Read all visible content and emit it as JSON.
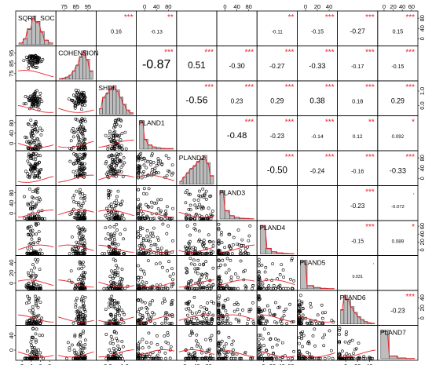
{
  "chart_data": {
    "type": "scatter-matrix",
    "variables": [
      "SQRT_SOC",
      "COHENSION",
      "SHDI",
      "PLAND1",
      "PLAND2",
      "PLAND3",
      "PLAND4",
      "PLAND5",
      "PLAND6",
      "PLAND7"
    ],
    "correlations": [
      {
        "row": 1,
        "col": 2,
        "r": "0.16",
        "stars": "***"
      },
      {
        "row": 1,
        "col": 3,
        "r": "-0.13",
        "stars": "**"
      },
      {
        "row": 1,
        "col": 4,
        "r": "",
        "stars": ""
      },
      {
        "row": 1,
        "col": 5,
        "r": "",
        "stars": ""
      },
      {
        "row": 1,
        "col": 6,
        "r": "-0.11",
        "stars": "**"
      },
      {
        "row": 1,
        "col": 7,
        "r": "-0.15",
        "stars": "***"
      },
      {
        "row": 1,
        "col": 8,
        "r": "-0.27",
        "stars": "***"
      },
      {
        "row": 1,
        "col": 9,
        "r": "0.15",
        "stars": "***"
      },
      {
        "row": 2,
        "col": 3,
        "r": "-0.87",
        "stars": "***"
      },
      {
        "row": 2,
        "col": 4,
        "r": "0.51",
        "stars": "***"
      },
      {
        "row": 2,
        "col": 5,
        "r": "-0.30",
        "stars": "***"
      },
      {
        "row": 2,
        "col": 6,
        "r": "-0.27",
        "stars": "***"
      },
      {
        "row": 2,
        "col": 7,
        "r": "-0.33",
        "stars": "***"
      },
      {
        "row": 2,
        "col": 8,
        "r": "-0.17",
        "stars": "***"
      },
      {
        "row": 2,
        "col": 9,
        "r": "-0.15",
        "stars": "***"
      },
      {
        "row": 3,
        "col": 4,
        "r": "-0.56",
        "stars": "***"
      },
      {
        "row": 3,
        "col": 5,
        "r": "0.23",
        "stars": "***"
      },
      {
        "row": 3,
        "col": 6,
        "r": "0.29",
        "stars": "***"
      },
      {
        "row": 3,
        "col": 7,
        "r": "0.38",
        "stars": "***"
      },
      {
        "row": 3,
        "col": 8,
        "r": "0.18",
        "stars": "***"
      },
      {
        "row": 3,
        "col": 9,
        "r": "0.29",
        "stars": "***"
      },
      {
        "row": 4,
        "col": 5,
        "r": "-0.48",
        "stars": "***"
      },
      {
        "row": 4,
        "col": 6,
        "r": "-0.23",
        "stars": "***"
      },
      {
        "row": 4,
        "col": 7,
        "r": "-0.14",
        "stars": "***"
      },
      {
        "row": 4,
        "col": 8,
        "r": "0.12",
        "stars": "**"
      },
      {
        "row": 4,
        "col": 9,
        "r": "0.092",
        "stars": "*"
      },
      {
        "row": 5,
        "col": 6,
        "r": "-0.50",
        "stars": "***"
      },
      {
        "row": 5,
        "col": 7,
        "r": "-0.24",
        "stars": "***"
      },
      {
        "row": 5,
        "col": 8,
        "r": "-0.16",
        "stars": "***"
      },
      {
        "row": 5,
        "col": 9,
        "r": "-0.33",
        "stars": "***"
      },
      {
        "row": 6,
        "col": 8,
        "r": "-0.23",
        "stars": "***"
      },
      {
        "row": 6,
        "col": 9,
        "r": "-0.072",
        "stars": "."
      },
      {
        "row": 7,
        "col": 8,
        "r": "-0.15",
        "stars": "***"
      },
      {
        "row": 7,
        "col": 9,
        "r": "0.089",
        "stars": "*"
      },
      {
        "row": 8,
        "col": 8,
        "r": "0.031",
        "stars": "."
      },
      {
        "row": 9,
        "col": 9,
        "r": "-0.23",
        "stars": "***"
      }
    ],
    "axis_ticks": {
      "top": [
        {
          "col": 1,
          "labels": [
            "75",
            "85",
            "95"
          ]
        },
        {
          "col": 3,
          "labels": [
            "0",
            "40",
            "80"
          ]
        },
        {
          "col": 5,
          "labels": [
            "0",
            "40",
            "80"
          ]
        },
        {
          "col": 7,
          "labels": [
            "0",
            "20",
            "40"
          ]
        },
        {
          "col": 9,
          "labels": [
            "0",
            "20",
            "40",
            "60"
          ]
        }
      ],
      "bottom": [
        {
          "col": 0,
          "labels": [
            "2",
            "4",
            "6",
            "8"
          ]
        },
        {
          "col": 2,
          "labels": [
            "0.0",
            "1.0"
          ]
        },
        {
          "col": 4,
          "labels": [
            "0",
            "40",
            "80"
          ]
        },
        {
          "col": 6,
          "labels": [
            "0",
            "20",
            "40",
            "60"
          ]
        },
        {
          "col": 8,
          "labels": [
            "0",
            "20",
            "40"
          ]
        }
      ],
      "left": [
        {
          "row": 1,
          "labels": [
            "75",
            "85",
            "95"
          ]
        },
        {
          "row": 3,
          "labels": [
            "0",
            "40",
            "80"
          ]
        },
        {
          "row": 5,
          "labels": [
            "0",
            "40",
            "80"
          ]
        },
        {
          "row": 7,
          "labels": [
            "0",
            "20",
            "40"
          ]
        },
        {
          "row": 9,
          "labels": [
            "0",
            "40"
          ]
        }
      ],
      "right": [
        {
          "row": 0,
          "labels": [
            "0",
            "40",
            "80"
          ]
        },
        {
          "row": 2,
          "labels": [
            "0.0",
            "1.0"
          ]
        },
        {
          "row": 4,
          "labels": [
            "0",
            "40",
            "80"
          ]
        },
        {
          "row": 6,
          "labels": [
            "0",
            "20",
            "40",
            "60"
          ]
        },
        {
          "row": 8,
          "labels": [
            "0",
            "20",
            "40"
          ]
        }
      ]
    },
    "colors": {
      "points": "#000000",
      "smoother": "#e8202a",
      "stars": "#e8202a",
      "hist_fill": "#bdbdbd",
      "frame": "#000000"
    }
  }
}
